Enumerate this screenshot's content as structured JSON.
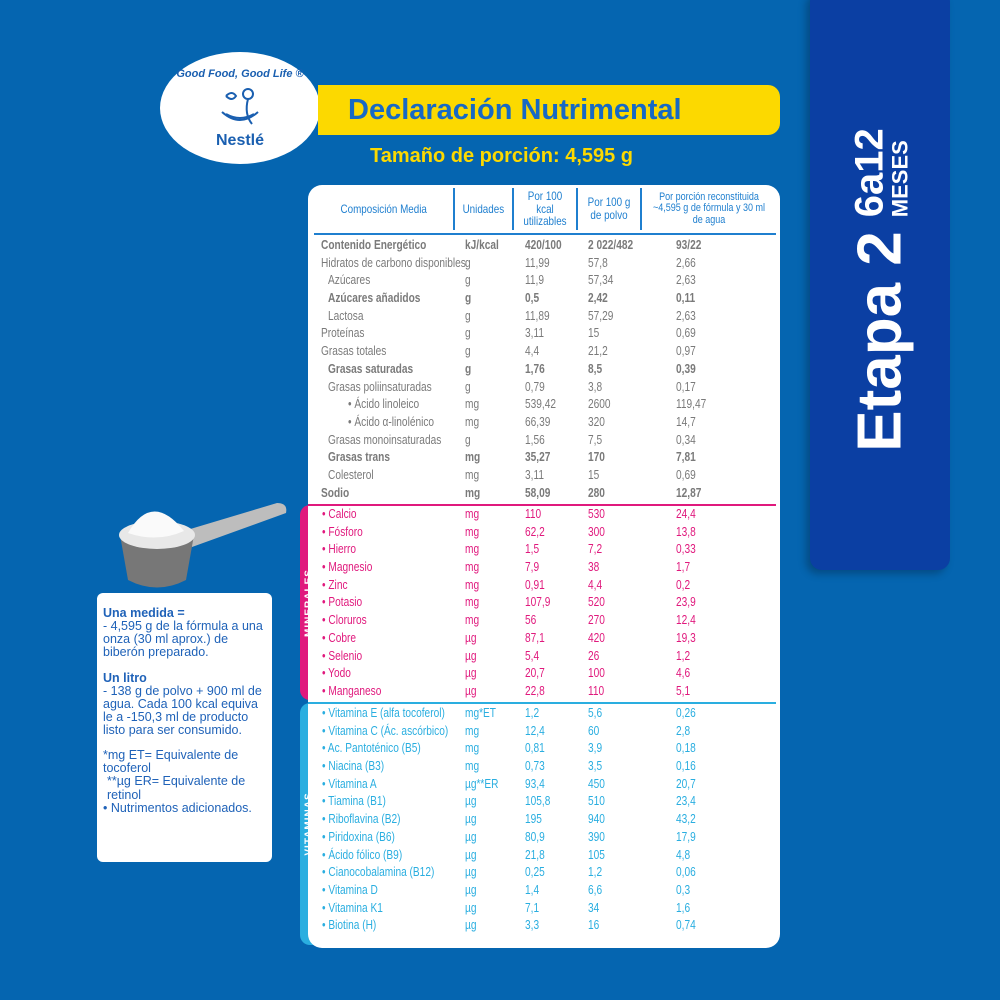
{
  "logo": {
    "slogan": "Good Food, Good Life ®",
    "brand": "Nestlé"
  },
  "title": "Declaración Nutrimental",
  "serving": "Tamaño de porción: 4,595 g",
  "stage": {
    "label": "Etapa 2",
    "age": "6a12",
    "unit": "MESES"
  },
  "colors": {
    "background": "#0565b0",
    "title_bar": "#fcd900",
    "stage_panel": "#0b3fa3",
    "minerals": "#e0197d",
    "vitamins": "#2aaee0"
  },
  "table": {
    "headers": [
      "Composición Media",
      "Unidades",
      "Por 100 kcal utilizables",
      "Por 100 g de polvo",
      "Por porción reconstituida ~4,595 g de fórmula y 30 ml de agua"
    ],
    "nutrients": [
      [
        "Contenido Energético",
        "kJ/kcal",
        "420/100",
        "2 022/482",
        "93/22",
        "b",
        0
      ],
      [
        "Hidratos de carbono disponibles",
        "g",
        "11,99",
        "57,8",
        "2,66",
        "",
        0
      ],
      [
        "Azúcares",
        "g",
        "11,9",
        "57,34",
        "2,63",
        "",
        1
      ],
      [
        "Azúcares añadidos",
        "g",
        "0,5",
        "2,42",
        "0,11",
        "b",
        1
      ],
      [
        "Lactosa",
        "g",
        "11,89",
        "57,29",
        "2,63",
        "",
        1
      ],
      [
        "Proteínas",
        "g",
        "3,11",
        "15",
        "0,69",
        "",
        0
      ],
      [
        "Grasas totales",
        "g",
        "4,4",
        "21,2",
        "0,97",
        "",
        0
      ],
      [
        "Grasas saturadas",
        "g",
        "1,76",
        "8,5",
        "0,39",
        "b",
        1
      ],
      [
        "Grasas poliinsaturadas",
        "g",
        "0,79",
        "3,8",
        "0,17",
        "",
        1
      ],
      [
        "• Ácido linoleico",
        "mg",
        "539,42",
        "2600",
        "119,47",
        "",
        2
      ],
      [
        "• Ácido α-linolénico",
        "mg",
        "66,39",
        "320",
        "14,7",
        "",
        2
      ],
      [
        "Grasas monoinsaturadas",
        "g",
        "1,56",
        "7,5",
        "0,34",
        "",
        1
      ],
      [
        "Grasas trans",
        "mg",
        "35,27",
        "170",
        "7,81",
        "b",
        1
      ],
      [
        "Colesterol",
        "mg",
        "3,11",
        "15",
        "0,69",
        "",
        1
      ],
      [
        "Sodio",
        "mg",
        "58,09",
        "280",
        "12,87",
        "b",
        0
      ]
    ],
    "minerals_label": "MINERALES",
    "minerals": [
      [
        "• Calcio",
        "mg",
        "110",
        "530",
        "24,4"
      ],
      [
        "• Fósforo",
        "mg",
        "62,2",
        "300",
        "13,8"
      ],
      [
        "• Hierro",
        "mg",
        "1,5",
        "7,2",
        "0,33"
      ],
      [
        "• Magnesio",
        "mg",
        "7,9",
        "38",
        "1,7"
      ],
      [
        "• Zinc",
        "mg",
        "0,91",
        "4,4",
        "0,2"
      ],
      [
        "• Potasio",
        "mg",
        "107,9",
        "520",
        "23,9"
      ],
      [
        "• Cloruros",
        "mg",
        "56",
        "270",
        "12,4"
      ],
      [
        "• Cobre",
        "µg",
        "87,1",
        "420",
        "19,3"
      ],
      [
        "• Selenio",
        "µg",
        "5,4",
        "26",
        "1,2"
      ],
      [
        "• Yodo",
        "µg",
        "20,7",
        "100",
        "4,6"
      ],
      [
        "• Manganeso",
        "µg",
        "22,8",
        "110",
        "5,1"
      ]
    ],
    "vitamins_label": "VITAMINAS",
    "vitamins": [
      [
        "• Vitamina E (alfa tocoferol)",
        "mg*ET",
        "1,2",
        "5,6",
        "0,26"
      ],
      [
        "• Vitamina C (Ác. ascórbico)",
        "mg",
        "12,4",
        "60",
        "2,8"
      ],
      [
        "• Ac. Pantoténico (B5)",
        "mg",
        "0,81",
        "3,9",
        "0,18"
      ],
      [
        "• Niacina (B3)",
        "mg",
        "0,73",
        "3,5",
        "0,16"
      ],
      [
        "• Vitamina A",
        "µg**ER",
        "93,4",
        "450",
        "20,7"
      ],
      [
        "• Tiamina (B1)",
        "µg",
        "105,8",
        "510",
        "23,4"
      ],
      [
        "• Riboflavina (B2)",
        "µg",
        "195",
        "940",
        "43,2"
      ],
      [
        "• Piridoxina (B6)",
        "µg",
        "80,9",
        "390",
        "17,9"
      ],
      [
        "• Ácido fólico (B9)",
        "µg",
        "21,8",
        "105",
        "4,8"
      ],
      [
        "• Cianocobalamina (B12)",
        "µg",
        "0,25",
        "1,2",
        "0,06"
      ],
      [
        "• Vitamina D",
        "µg",
        "1,4",
        "6,6",
        "0,3"
      ],
      [
        "• Vitamina K1",
        "µg",
        "7,1",
        "34",
        "1,6"
      ],
      [
        "• Biotina (H)",
        "µg",
        "3,3",
        "16",
        "0,74"
      ]
    ]
  },
  "info": {
    "measure_title": "Una medida =",
    "measure_text": "- 4,595 g de la fórmula a una onza (30 ml aprox.) de biberón  preparado.",
    "liter_title": "Un litro",
    "liter_text": "- 138 g de polvo + 900 ml de agua.  Cada 100 kcal equiva le a -150,3 ml de producto listo  para ser consumido.",
    "note1": "*mg ET= Equivalente de tocoferol",
    "note2": "**µg ER= Equivalente de retinol",
    "note3": "• Nutrimentos adicionados."
  }
}
